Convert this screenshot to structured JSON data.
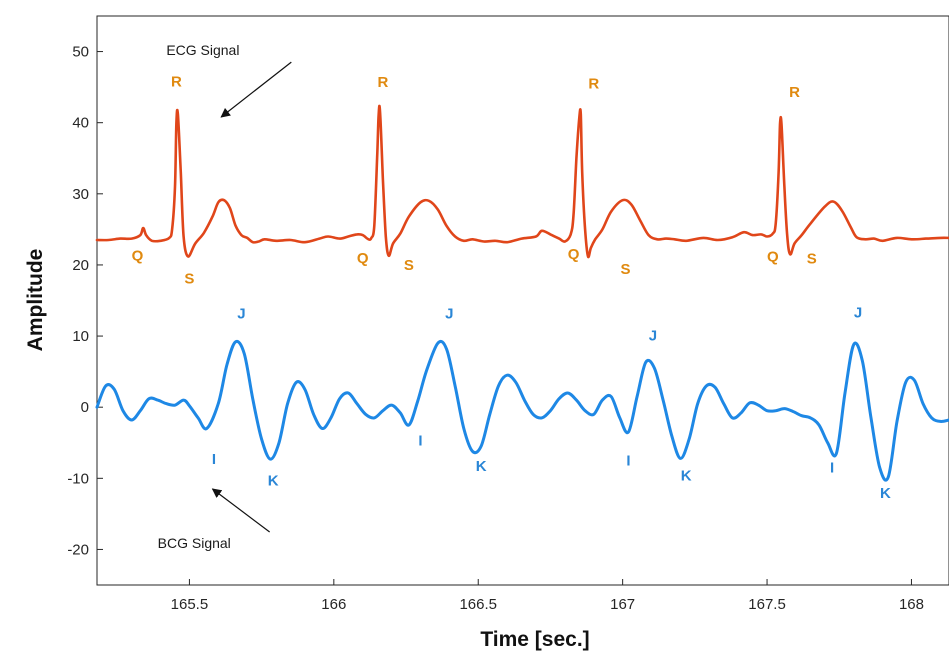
{
  "chart_data": {
    "type": "line",
    "xlabel": "Time [sec.]",
    "ylabel": "Amplitude",
    "xlim": [
      165.18,
      168.13
    ],
    "ylim": [
      -25,
      55
    ],
    "x_ticks": [
      165.5,
      166,
      166.5,
      167,
      167.5,
      168
    ],
    "x_tick_labels": [
      "165.5",
      "166",
      "166.5",
      "167",
      "167.5",
      "168"
    ],
    "y_ticks": [
      -20,
      -10,
      0,
      10,
      20,
      30,
      40,
      50
    ],
    "y_tick_labels": [
      "-20",
      "-10",
      "0",
      "10",
      "20",
      "30",
      "40",
      "50"
    ],
    "grid": false,
    "colors": {
      "ecg": "#e0461a",
      "bcg": "#1e88e5",
      "ecg_label": "#e08a10",
      "bcg_label": "#2a86d6"
    },
    "annotations": [
      {
        "text": "ECG Signal",
        "x": 165.42,
        "y": 49.5,
        "arrow_to": [
          165.61,
          40.8
        ]
      },
      {
        "text": "BCG Signal",
        "x": 165.39,
        "y": -19.8,
        "arrow_to": [
          165.58,
          -11.5
        ]
      }
    ],
    "series": [
      {
        "key": "ecg",
        "x": [
          165.18,
          165.22,
          165.26,
          165.3,
          165.33,
          165.34,
          165.35,
          165.37,
          165.4,
          165.43,
          165.44,
          165.45,
          165.455,
          165.46,
          165.47,
          165.48,
          165.495,
          165.52,
          165.55,
          165.58,
          165.6,
          165.62,
          165.64,
          165.66,
          165.68,
          165.7,
          165.72,
          165.74,
          165.76,
          165.8,
          165.85,
          165.9,
          165.95,
          165.98,
          166.02,
          166.05,
          166.08,
          166.1,
          166.12,
          166.13,
          166.14,
          166.15,
          166.155,
          166.16,
          166.17,
          166.18,
          166.19,
          166.205,
          166.23,
          166.26,
          166.3,
          166.33,
          166.36,
          166.39,
          166.42,
          166.45,
          166.48,
          166.52,
          166.56,
          166.6,
          166.65,
          166.7,
          166.72,
          166.75,
          166.78,
          166.8,
          166.82,
          166.83,
          166.84,
          166.85,
          166.855,
          166.86,
          166.87,
          166.88,
          166.89,
          166.905,
          166.93,
          166.96,
          167.0,
          167.03,
          167.06,
          167.09,
          167.12,
          167.15,
          167.18,
          167.22,
          167.28,
          167.33,
          167.38,
          167.42,
          167.45,
          167.48,
          167.5,
          167.52,
          167.53,
          167.54,
          167.545,
          167.55,
          167.56,
          167.57,
          167.58,
          167.595,
          167.62,
          167.65,
          167.7,
          167.73,
          167.76,
          167.79,
          167.81,
          167.84,
          167.87,
          167.9,
          167.95,
          168.0,
          168.05,
          168.1,
          168.13
        ],
        "y": [
          23.5,
          23.5,
          23.7,
          23.7,
          24.2,
          25.2,
          24.2,
          23.4,
          23.4,
          23.8,
          25.0,
          31.0,
          40.0,
          41.2,
          33.0,
          24.0,
          21.2,
          23.0,
          24.5,
          26.8,
          28.8,
          29.1,
          28.0,
          25.5,
          24.2,
          23.8,
          23.2,
          23.3,
          23.6,
          23.4,
          23.5,
          23.2,
          23.7,
          24.0,
          23.7,
          24.0,
          24.3,
          24.2,
          23.6,
          23.8,
          25.5,
          35.0,
          41.0,
          41.6,
          32.0,
          24.0,
          21.3,
          23.0,
          24.4,
          26.8,
          28.8,
          29.0,
          27.8,
          25.5,
          24.0,
          23.4,
          23.6,
          23.3,
          23.4,
          23.2,
          23.7,
          24.0,
          24.8,
          24.3,
          23.7,
          23.3,
          24.3,
          27.0,
          35.0,
          40.7,
          41.2,
          33.0,
          25.0,
          21.2,
          22.4,
          23.6,
          25.0,
          27.5,
          29.1,
          28.5,
          26.3,
          24.2,
          23.6,
          23.7,
          23.6,
          23.4,
          23.8,
          23.5,
          23.9,
          24.6,
          24.2,
          24.3,
          24.0,
          24.4,
          25.8,
          33.0,
          39.8,
          39.8,
          31.0,
          24.0,
          21.5,
          23.0,
          24.2,
          25.8,
          28.2,
          28.9,
          27.6,
          25.3,
          23.9,
          23.6,
          23.7,
          23.4,
          23.8,
          23.6,
          23.7,
          23.8,
          23.8
        ]
      },
      {
        "key": "bcg",
        "x": [
          165.18,
          165.21,
          165.24,
          165.27,
          165.3,
          165.33,
          165.36,
          165.39,
          165.42,
          165.45,
          165.48,
          165.5,
          165.53,
          165.56,
          165.6,
          165.63,
          165.66,
          165.69,
          165.72,
          165.75,
          165.78,
          165.81,
          165.84,
          165.87,
          165.9,
          165.93,
          165.96,
          165.99,
          166.02,
          166.05,
          166.08,
          166.11,
          166.14,
          166.17,
          166.2,
          166.23,
          166.26,
          166.29,
          166.32,
          166.36,
          166.39,
          166.42,
          166.45,
          166.48,
          166.51,
          166.54,
          166.57,
          166.6,
          166.63,
          166.66,
          166.69,
          166.72,
          166.75,
          166.78,
          166.81,
          166.84,
          166.87,
          166.9,
          166.93,
          166.96,
          166.99,
          167.02,
          167.05,
          167.08,
          167.11,
          167.14,
          167.17,
          167.2,
          167.23,
          167.26,
          167.29,
          167.32,
          167.35,
          167.38,
          167.41,
          167.44,
          167.47,
          167.5,
          167.53,
          167.56,
          167.59,
          167.62,
          167.65,
          167.68,
          167.71,
          167.74,
          167.77,
          167.8,
          167.83,
          167.86,
          167.89,
          167.92,
          167.95,
          167.98,
          168.01,
          168.04,
          168.07,
          168.1,
          168.13
        ],
        "y": [
          0.0,
          3.0,
          2.5,
          -0.5,
          -1.8,
          -0.5,
          1.2,
          1.0,
          0.5,
          0.3,
          1.0,
          0.2,
          -1.5,
          -3.0,
          0.5,
          6.0,
          9.2,
          7.5,
          1.0,
          -4.5,
          -7.3,
          -5.0,
          0.5,
          3.5,
          2.5,
          -1.0,
          -3.0,
          -1.5,
          1.2,
          2.0,
          0.5,
          -1.0,
          -1.5,
          -0.5,
          0.3,
          -0.8,
          -2.5,
          0.8,
          5.0,
          9.0,
          8.2,
          3.0,
          -3.0,
          -6.2,
          -5.5,
          -1.0,
          3.0,
          4.5,
          3.5,
          1.0,
          -1.0,
          -1.5,
          -0.5,
          1.2,
          2.0,
          1.0,
          -0.5,
          -1.0,
          1.0,
          1.5,
          -1.5,
          -3.5,
          1.5,
          6.3,
          5.5,
          1.0,
          -4.0,
          -7.2,
          -4.5,
          0.5,
          3.0,
          2.8,
          0.5,
          -1.5,
          -0.8,
          0.6,
          0.3,
          -0.5,
          -0.5,
          -0.2,
          -0.6,
          -1.2,
          -1.5,
          -2.5,
          -5.0,
          -6.5,
          2.0,
          8.8,
          6.5,
          -1.5,
          -8.5,
          -9.8,
          -2.0,
          3.5,
          3.8,
          0.5,
          -1.5,
          -2.0,
          -1.8
        ]
      }
    ],
    "peak_labels": [
      {
        "series": "ecg",
        "text": "Q",
        "x": 165.32,
        "y": 20.6
      },
      {
        "series": "ecg",
        "text": "R",
        "x": 165.455,
        "y": 45.1
      },
      {
        "series": "ecg",
        "text": "S",
        "x": 165.5,
        "y": 17.4
      },
      {
        "series": "ecg",
        "text": "Q",
        "x": 166.1,
        "y": 20.3
      },
      {
        "series": "ecg",
        "text": "R",
        "x": 166.17,
        "y": 45.0
      },
      {
        "series": "ecg",
        "text": "S",
        "x": 166.26,
        "y": 19.3
      },
      {
        "series": "ecg",
        "text": "Q",
        "x": 166.83,
        "y": 20.8
      },
      {
        "series": "ecg",
        "text": "R",
        "x": 166.9,
        "y": 44.8
      },
      {
        "series": "ecg",
        "text": "S",
        "x": 167.01,
        "y": 18.7
      },
      {
        "series": "ecg",
        "text": "Q",
        "x": 167.52,
        "y": 20.5
      },
      {
        "series": "ecg",
        "text": "R",
        "x": 167.595,
        "y": 43.6
      },
      {
        "series": "ecg",
        "text": "S",
        "x": 167.655,
        "y": 20.2
      },
      {
        "series": "bcg",
        "text": "I",
        "x": 165.585,
        "y": -8.0
      },
      {
        "series": "bcg",
        "text": "J",
        "x": 165.68,
        "y": 12.5
      },
      {
        "series": "bcg",
        "text": "K",
        "x": 165.79,
        "y": -11.0
      },
      {
        "series": "bcg",
        "text": "I",
        "x": 166.3,
        "y": -5.4
      },
      {
        "series": "bcg",
        "text": "J",
        "x": 166.4,
        "y": 12.5
      },
      {
        "series": "bcg",
        "text": "K",
        "x": 166.51,
        "y": -9.0
      },
      {
        "series": "bcg",
        "text": "I",
        "x": 167.02,
        "y": -8.2
      },
      {
        "series": "bcg",
        "text": "J",
        "x": 167.105,
        "y": 9.4
      },
      {
        "series": "bcg",
        "text": "K",
        "x": 167.22,
        "y": -10.3
      },
      {
        "series": "bcg",
        "text": "I",
        "x": 167.725,
        "y": -9.2
      },
      {
        "series": "bcg",
        "text": "J",
        "x": 167.815,
        "y": 12.6
      },
      {
        "series": "bcg",
        "text": "K",
        "x": 167.91,
        "y": -12.8
      }
    ]
  }
}
